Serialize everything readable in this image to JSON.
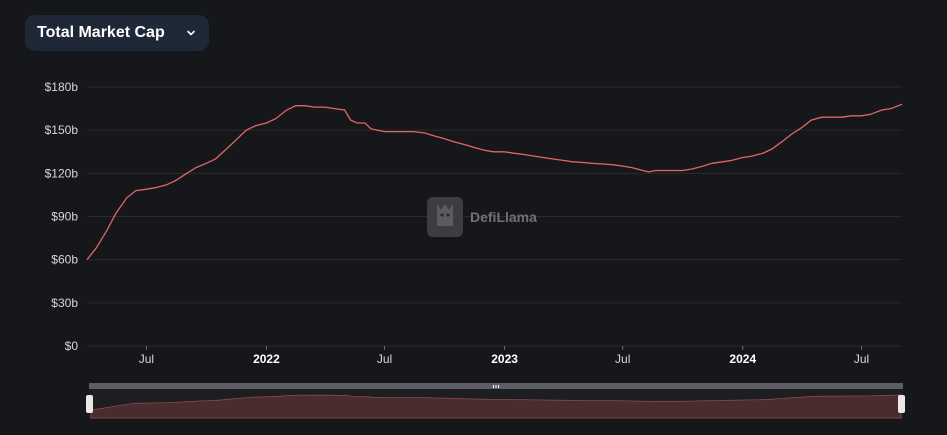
{
  "selector": {
    "label": "Total Market Cap"
  },
  "watermark": {
    "text": "DefiLlama"
  },
  "colors": {
    "background": "#16171a",
    "line": "#e06666",
    "grid": "#2a2b30",
    "selector_bg": "#1f2837"
  },
  "chart_data": {
    "type": "line",
    "title": "",
    "xlabel": "",
    "ylabel": "",
    "y_tick_labels": [
      "$0",
      "$30b",
      "$60b",
      "$90b",
      "$120b",
      "$150b",
      "$180b"
    ],
    "y_tick_values": [
      0,
      30,
      60,
      90,
      120,
      150,
      180
    ],
    "ylim": [
      0,
      180
    ],
    "xlim": [
      "2021-04-01",
      "2024-09-01"
    ],
    "x_ticks": [
      {
        "label": "Jul",
        "date": "2021-07-01",
        "year": false
      },
      {
        "label": "2022",
        "date": "2022-01-01",
        "year": true
      },
      {
        "label": "Jul",
        "date": "2022-07-01",
        "year": false
      },
      {
        "label": "2023",
        "date": "2023-01-01",
        "year": true
      },
      {
        "label": "Jul",
        "date": "2023-07-01",
        "year": false
      },
      {
        "label": "2024",
        "date": "2024-01-01",
        "year": true
      },
      {
        "label": "Jul",
        "date": "2024-07-01",
        "year": false
      }
    ],
    "grid": true,
    "series": [
      {
        "name": "",
        "points": [
          [
            "2021-04-01",
            60
          ],
          [
            "2021-04-15",
            68
          ],
          [
            "2021-05-01",
            80
          ],
          [
            "2021-05-15",
            92
          ],
          [
            "2021-06-01",
            103
          ],
          [
            "2021-06-15",
            108
          ],
          [
            "2021-07-01",
            109
          ],
          [
            "2021-07-15",
            110
          ],
          [
            "2021-08-01",
            112
          ],
          [
            "2021-08-15",
            115
          ],
          [
            "2021-09-01",
            120
          ],
          [
            "2021-09-15",
            124
          ],
          [
            "2021-10-01",
            127
          ],
          [
            "2021-10-15",
            130
          ],
          [
            "2021-11-01",
            137
          ],
          [
            "2021-11-15",
            143
          ],
          [
            "2021-12-01",
            150
          ],
          [
            "2021-12-15",
            153
          ],
          [
            "2022-01-01",
            155
          ],
          [
            "2022-01-15",
            158
          ],
          [
            "2022-02-01",
            164
          ],
          [
            "2022-02-15",
            167
          ],
          [
            "2022-03-01",
            167
          ],
          [
            "2022-03-15",
            166
          ],
          [
            "2022-04-01",
            166
          ],
          [
            "2022-04-15",
            165
          ],
          [
            "2022-05-01",
            164
          ],
          [
            "2022-05-10",
            157
          ],
          [
            "2022-05-20",
            155
          ],
          [
            "2022-06-01",
            155
          ],
          [
            "2022-06-10",
            151
          ],
          [
            "2022-06-20",
            150
          ],
          [
            "2022-07-01",
            149
          ],
          [
            "2022-07-15",
            149
          ],
          [
            "2022-08-01",
            149
          ],
          [
            "2022-08-15",
            149
          ],
          [
            "2022-09-01",
            148
          ],
          [
            "2022-09-15",
            146
          ],
          [
            "2022-10-01",
            144
          ],
          [
            "2022-10-15",
            142
          ],
          [
            "2022-11-01",
            140
          ],
          [
            "2022-11-15",
            138
          ],
          [
            "2022-12-01",
            136
          ],
          [
            "2022-12-15",
            135
          ],
          [
            "2023-01-01",
            135
          ],
          [
            "2023-01-15",
            134
          ],
          [
            "2023-02-01",
            133
          ],
          [
            "2023-02-15",
            132
          ],
          [
            "2023-03-01",
            131
          ],
          [
            "2023-03-15",
            130
          ],
          [
            "2023-04-01",
            129
          ],
          [
            "2023-04-15",
            128
          ],
          [
            "2023-05-01",
            127.5
          ],
          [
            "2023-05-15",
            127
          ],
          [
            "2023-06-01",
            126.5
          ],
          [
            "2023-06-15",
            126
          ],
          [
            "2023-07-01",
            125
          ],
          [
            "2023-07-15",
            124
          ],
          [
            "2023-08-01",
            122
          ],
          [
            "2023-08-10",
            121
          ],
          [
            "2023-08-20",
            122
          ],
          [
            "2023-09-01",
            122
          ],
          [
            "2023-09-15",
            122
          ],
          [
            "2023-10-01",
            122
          ],
          [
            "2023-10-15",
            123
          ],
          [
            "2023-11-01",
            125
          ],
          [
            "2023-11-15",
            127
          ],
          [
            "2023-12-01",
            128
          ],
          [
            "2023-12-15",
            129
          ],
          [
            "2024-01-01",
            131
          ],
          [
            "2024-01-15",
            132
          ],
          [
            "2024-02-01",
            134
          ],
          [
            "2024-02-15",
            137
          ],
          [
            "2024-03-01",
            142
          ],
          [
            "2024-03-15",
            147
          ],
          [
            "2024-04-01",
            152
          ],
          [
            "2024-04-15",
            157
          ],
          [
            "2024-05-01",
            159
          ],
          [
            "2024-05-15",
            159
          ],
          [
            "2024-06-01",
            159
          ],
          [
            "2024-06-15",
            160
          ],
          [
            "2024-07-01",
            160
          ],
          [
            "2024-07-15",
            161
          ],
          [
            "2024-08-01",
            164
          ],
          [
            "2024-08-15",
            165
          ],
          [
            "2024-09-01",
            168
          ]
        ]
      }
    ]
  }
}
